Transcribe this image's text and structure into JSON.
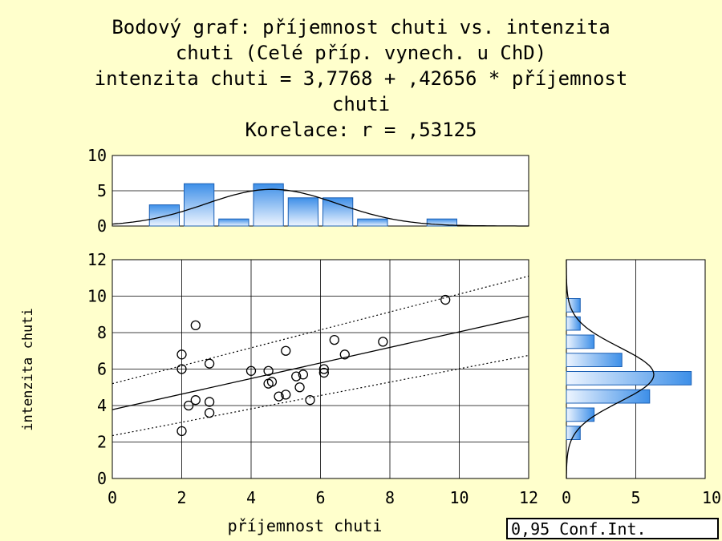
{
  "title_lines": [
    "Bodový graf: příjemnost chuti vs. intenzita",
    "chuti (Celé příp. vynech. u ChD)",
    "intenzita chuti = 3,7768 + ,42656 * příjemnost",
    "chuti",
    "Korelace: r = ,53125"
  ],
  "legend_text": "0,95 Conf.Int.",
  "colors": {
    "background": "#ffffcc",
    "plot_area": "#ffffff",
    "bar_fill_light": "#eef5ff",
    "bar_fill_dark": "#3d8fe8",
    "bar_stroke": "#1a5fb4"
  },
  "chart_data": [
    {
      "type": "scatter",
      "xlabel": "příjemnost chuti",
      "ylabel": "intenzita chuti",
      "xlim": [
        0,
        12
      ],
      "ylim": [
        0,
        12
      ],
      "x_ticks": [
        "0",
        "2",
        "4",
        "6",
        "8",
        "10",
        "12"
      ],
      "y_ticks": [
        "0",
        "2",
        "4",
        "6",
        "8",
        "10",
        "12"
      ],
      "grid": true,
      "points": [
        [
          2.0,
          6.8
        ],
        [
          2.0,
          6.0
        ],
        [
          2.0,
          2.6
        ],
        [
          2.2,
          4.0
        ],
        [
          2.4,
          8.4
        ],
        [
          2.4,
          4.3
        ],
        [
          2.8,
          6.3
        ],
        [
          2.8,
          4.2
        ],
        [
          2.8,
          3.6
        ],
        [
          4.0,
          5.9
        ],
        [
          4.5,
          5.9
        ],
        [
          4.5,
          5.2
        ],
        [
          4.6,
          5.3
        ],
        [
          4.8,
          4.5
        ],
        [
          5.0,
          7.0
        ],
        [
          5.0,
          4.6
        ],
        [
          5.3,
          5.6
        ],
        [
          5.4,
          5.0
        ],
        [
          5.5,
          5.7
        ],
        [
          5.7,
          4.3
        ],
        [
          6.1,
          5.8
        ],
        [
          6.1,
          6.0
        ],
        [
          6.4,
          7.6
        ],
        [
          6.7,
          6.8
        ],
        [
          7.8,
          7.5
        ],
        [
          9.6,
          9.8
        ]
      ],
      "regression": {
        "intercept": 3.7768,
        "slope": 0.42656
      },
      "confidence_band": {
        "level": 0.95,
        "upper": [
          [
            0,
            5.2
          ],
          [
            12,
            11.1
          ]
        ],
        "lower": [
          [
            0,
            2.35
          ],
          [
            12,
            6.75
          ]
        ]
      }
    },
    {
      "type": "bar",
      "subtype": "histogram",
      "variable": "příjemnost chuti",
      "bin_edges": [
        0,
        1,
        2,
        3,
        4,
        5,
        6,
        7,
        8,
        9,
        10,
        11,
        12
      ],
      "values": [
        0,
        3,
        6,
        1,
        6,
        4,
        4,
        1,
        0,
        1,
        0,
        0
      ],
      "ylim": [
        0,
        10
      ],
      "y_ticks": [
        "0",
        "5",
        "10"
      ],
      "normal_curve": {
        "mean": 4.6,
        "sd": 1.9,
        "peak": 5.2
      }
    },
    {
      "type": "bar",
      "subtype": "histogram",
      "orientation": "horizontal",
      "variable": "intenzita chuti",
      "bin_edges": [
        0,
        1,
        2,
        3,
        4,
        5,
        6,
        7,
        8,
        9,
        10,
        11,
        12
      ],
      "values": [
        0,
        0,
        1,
        2,
        6,
        9,
        4,
        2,
        1,
        1,
        0,
        0
      ],
      "xlim": [
        0,
        10
      ],
      "x_ticks": [
        "0",
        "5",
        "10"
      ],
      "normal_curve": {
        "mean": 5.7,
        "sd": 1.5,
        "peak": 6.3
      }
    }
  ]
}
